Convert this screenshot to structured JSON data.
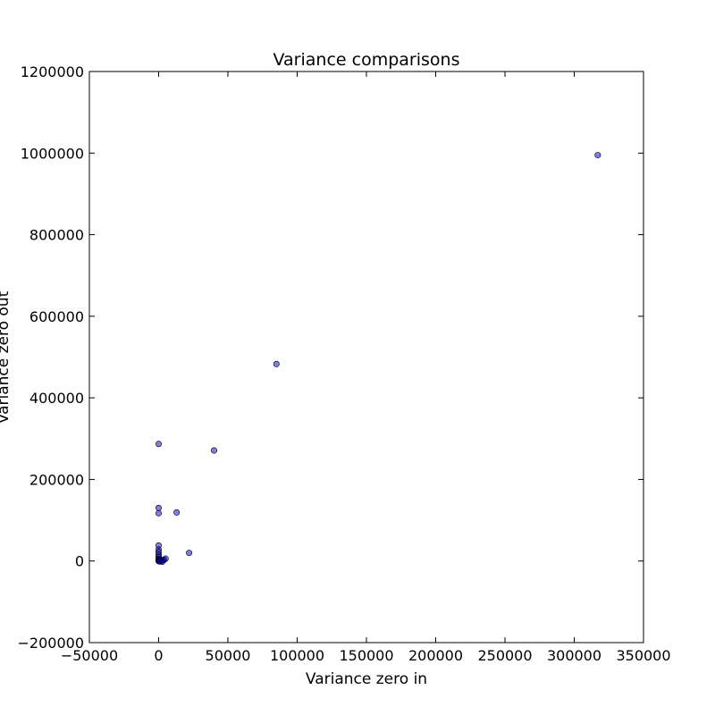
{
  "chart_data": {
    "type": "scatter",
    "title": "Variance comparisons",
    "xlabel": "Variance zero in",
    "ylabel": "Variance zero out",
    "xlim": [
      -50000,
      350000
    ],
    "ylim": [
      -200000,
      1200000
    ],
    "x_ticks": [
      -50000,
      0,
      50000,
      100000,
      150000,
      200000,
      250000,
      300000,
      350000
    ],
    "x_tick_labels": [
      "−50000",
      "0",
      "50000",
      "100000",
      "150000",
      "200000",
      "250000",
      "300000",
      "350000"
    ],
    "y_ticks": [
      -200000,
      0,
      200000,
      400000,
      600000,
      800000,
      1000000,
      1200000
    ],
    "y_tick_labels": [
      "−200000",
      "0",
      "200000",
      "400000",
      "600000",
      "800000",
      "1000000",
      "1200000"
    ],
    "grid": false,
    "marker_color": "#0000cc",
    "marker_opacity": 0.5,
    "points": [
      {
        "x": 317000,
        "y": 995000
      },
      {
        "x": 85000,
        "y": 483000
      },
      {
        "x": 40000,
        "y": 271000
      },
      {
        "x": 0,
        "y": 287000
      },
      {
        "x": 0,
        "y": 130000
      },
      {
        "x": 0,
        "y": 117000
      },
      {
        "x": 13000,
        "y": 119000
      },
      {
        "x": 22000,
        "y": 20000
      },
      {
        "x": 0,
        "y": 38000
      },
      {
        "x": 0,
        "y": 28000
      },
      {
        "x": 0,
        "y": 22000
      },
      {
        "x": 0,
        "y": 15000
      },
      {
        "x": 0,
        "y": 10000
      },
      {
        "x": 0,
        "y": 5000
      },
      {
        "x": 0,
        "y": 2000
      },
      {
        "x": 0,
        "y": 0
      },
      {
        "x": 1000,
        "y": 0
      },
      {
        "x": 2000,
        "y": 1000
      },
      {
        "x": 3000,
        "y": 2000
      },
      {
        "x": 4000,
        "y": 3000
      },
      {
        "x": 5000,
        "y": 6000
      },
      {
        "x": 1000,
        "y": 4000
      },
      {
        "x": 500,
        "y": -1000
      },
      {
        "x": 2500,
        "y": -2000
      }
    ]
  }
}
